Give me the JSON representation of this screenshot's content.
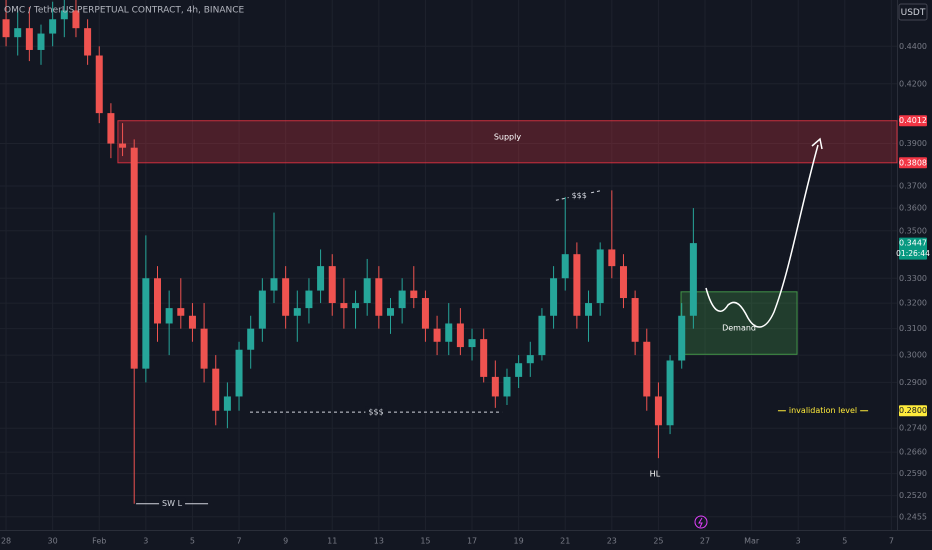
{
  "chart_data": {
    "type": "candlestick",
    "title": "OMC / TetherUS PERPETUAL CONTRACT, 4h, BINANCE",
    "currency": "USDT",
    "log_scale": true,
    "grid": true,
    "up_color": "#26a69a",
    "down_color": "#ef5350",
    "xlim": [
      -0.26,
      38.24
    ],
    "ylim": [
      0.2415,
      0.466
    ],
    "xticks": [
      {
        "value": 0,
        "label": "28"
      },
      {
        "value": 2,
        "label": "30"
      },
      {
        "value": 4,
        "label": "Feb"
      },
      {
        "value": 6,
        "label": "3"
      },
      {
        "value": 8,
        "label": "5"
      },
      {
        "value": 10,
        "label": "7"
      },
      {
        "value": 12,
        "label": "9"
      },
      {
        "value": 14,
        "label": "11"
      },
      {
        "value": 16,
        "label": "13"
      },
      {
        "value": 18,
        "label": "15"
      },
      {
        "value": 20,
        "label": "17"
      },
      {
        "value": 22,
        "label": "19"
      },
      {
        "value": 24,
        "label": "21"
      },
      {
        "value": 26,
        "label": "23"
      },
      {
        "value": 28,
        "label": "25"
      },
      {
        "value": 30,
        "label": "27"
      },
      {
        "value": 32,
        "label": "Mar"
      },
      {
        "value": 34,
        "label": "3"
      },
      {
        "value": 36,
        "label": "5"
      },
      {
        "value": 38,
        "label": "7"
      }
    ],
    "yticks": [
      {
        "value": 0.44,
        "label": "0.4400"
      },
      {
        "value": 0.42,
        "label": "0.4200"
      },
      {
        "value": 0.39,
        "label": "0.3900"
      },
      {
        "value": 0.37,
        "label": "0.3700"
      },
      {
        "value": 0.36,
        "label": "0.3600"
      },
      {
        "value": 0.35,
        "label": "0.3500"
      },
      {
        "value": 0.33,
        "label": "0.3300"
      },
      {
        "value": 0.32,
        "label": "0.3200"
      },
      {
        "value": 0.31,
        "label": "0.3100"
      },
      {
        "value": 0.3,
        "label": "0.3000"
      },
      {
        "value": 0.29,
        "label": "0.2900"
      },
      {
        "value": 0.274,
        "label": "0.2740"
      },
      {
        "value": 0.266,
        "label": "0.2660"
      },
      {
        "value": 0.259,
        "label": "0.2590"
      },
      {
        "value": 0.252,
        "label": "0.2520"
      },
      {
        "value": 0.2455,
        "label": "0.2455"
      }
    ],
    "price_labels": [
      {
        "value": 0.4012,
        "label": "0.4012",
        "color": "#f23645"
      },
      {
        "value": 0.3808,
        "label": "0.3808",
        "color": "#f23645"
      },
      {
        "value": 0.3447,
        "label": "0.3447",
        "color": "#089981",
        "note": "01:26:44"
      },
      {
        "value": 0.28,
        "label": "0.2800",
        "color": "#ffeb3b"
      }
    ],
    "x": [
      0,
      0.5,
      1,
      1.5,
      2,
      2.5,
      3,
      3.5,
      4,
      4.5,
      5,
      5.5,
      6,
      6.5,
      7,
      7.5,
      8,
      8.5,
      9,
      9.5,
      10,
      10.5,
      11,
      11.5,
      12,
      12.5,
      13,
      13.5,
      14,
      14.5,
      15,
      15.5,
      16,
      16.5,
      17,
      17.5,
      18,
      18.5,
      19,
      19.5,
      20,
      20.5,
      21,
      21.5,
      22,
      22.5,
      23,
      23.5,
      24,
      24.5,
      25,
      25.5,
      26,
      26.5,
      27,
      27.5,
      28,
      28.5,
      29,
      29.5
    ],
    "open": [
      0.455,
      0.445,
      0.45,
      0.438,
      0.447,
      0.455,
      0.46,
      0.45,
      0.435,
      0.405,
      0.39,
      0.388,
      0.295,
      0.33,
      0.312,
      0.318,
      0.315,
      0.31,
      0.295,
      0.28,
      0.285,
      0.302,
      0.31,
      0.325,
      0.33,
      0.315,
      0.318,
      0.325,
      0.335,
      0.32,
      0.318,
      0.32,
      0.33,
      0.315,
      0.318,
      0.325,
      0.322,
      0.31,
      0.305,
      0.312,
      0.303,
      0.306,
      0.292,
      0.285,
      0.292,
      0.297,
      0.3,
      0.315,
      0.33,
      0.34,
      0.315,
      0.32,
      0.342,
      0.335,
      0.322,
      0.305,
      0.285,
      0.275,
      0.298,
      0.315
    ],
    "high": [
      0.466,
      0.46,
      0.462,
      0.452,
      0.465,
      0.466,
      0.466,
      0.455,
      0.44,
      0.41,
      0.4,
      0.392,
      0.348,
      0.335,
      0.325,
      0.33,
      0.32,
      0.32,
      0.3,
      0.29,
      0.305,
      0.315,
      0.33,
      0.358,
      0.335,
      0.325,
      0.33,
      0.342,
      0.34,
      0.33,
      0.325,
      0.338,
      0.335,
      0.322,
      0.33,
      0.335,
      0.325,
      0.315,
      0.32,
      0.318,
      0.31,
      0.31,
      0.298,
      0.295,
      0.3,
      0.305,
      0.318,
      0.335,
      0.365,
      0.345,
      0.325,
      0.345,
      0.368,
      0.34,
      0.325,
      0.31,
      0.29,
      0.3,
      0.32,
      0.36
    ],
    "low": [
      0.44,
      0.435,
      0.432,
      0.43,
      0.44,
      0.445,
      0.445,
      0.43,
      0.4,
      0.383,
      0.384,
      0.2495,
      0.29,
      0.305,
      0.3,
      0.31,
      0.305,
      0.29,
      0.275,
      0.274,
      0.28,
      0.295,
      0.305,
      0.32,
      0.31,
      0.305,
      0.312,
      0.32,
      0.315,
      0.31,
      0.31,
      0.315,
      0.31,
      0.308,
      0.312,
      0.318,
      0.305,
      0.3,
      0.3,
      0.3,
      0.298,
      0.29,
      0.281,
      0.282,
      0.288,
      0.292,
      0.298,
      0.31,
      0.325,
      0.31,
      0.305,
      0.315,
      0.33,
      0.318,
      0.3,
      0.28,
      0.264,
      0.272,
      0.295,
      0.31
    ],
    "close": [
      0.445,
      0.45,
      0.438,
      0.447,
      0.455,
      0.46,
      0.45,
      0.435,
      0.405,
      0.39,
      0.388,
      0.295,
      0.33,
      0.312,
      0.318,
      0.315,
      0.31,
      0.295,
      0.28,
      0.285,
      0.302,
      0.31,
      0.325,
      0.33,
      0.315,
      0.318,
      0.325,
      0.335,
      0.32,
      0.318,
      0.32,
      0.33,
      0.315,
      0.318,
      0.325,
      0.322,
      0.31,
      0.305,
      0.312,
      0.303,
      0.306,
      0.292,
      0.285,
      0.292,
      0.297,
      0.3,
      0.315,
      0.33,
      0.34,
      0.315,
      0.32,
      0.342,
      0.335,
      0.322,
      0.305,
      0.285,
      0.275,
      0.298,
      0.315,
      0.3447
    ],
    "zones": [
      {
        "label": "Supply",
        "x": [
          4.8,
          38.24
        ],
        "y": [
          0.3808,
          0.4012
        ],
        "color": "#f23645"
      },
      {
        "label": "Demand",
        "x": [
          28.97,
          33.95
        ],
        "y": [
          0.3003,
          0.3245
        ],
        "color": "#4caf50"
      }
    ],
    "levels": [
      {
        "label": "$$$",
        "x": [
          10.47,
          21.29
        ],
        "y": [
          0.2795,
          0.2795
        ],
        "color": "#d1d4dc",
        "dashed": true
      },
      {
        "label": "$$$",
        "x": [
          23.6,
          25.6
        ],
        "y": [
          0.3635,
          0.368
        ],
        "color": "#d1d4dc",
        "dashed": true
      },
      {
        "label": "SW L",
        "x": [
          5.58,
          8.67
        ],
        "y": [
          0.2495,
          0.2495
        ],
        "color": "#d1d4dc",
        "dashed": false
      },
      {
        "label": "invalidation level",
        "x": [
          33.13,
          37.0
        ],
        "y": [
          0.28,
          0.28
        ],
        "color": "#ffeb3b",
        "dashed": false
      }
    ],
    "markers": [
      {
        "label": "HL",
        "x": 27.85,
        "y": 0.2588
      }
    ]
  }
}
